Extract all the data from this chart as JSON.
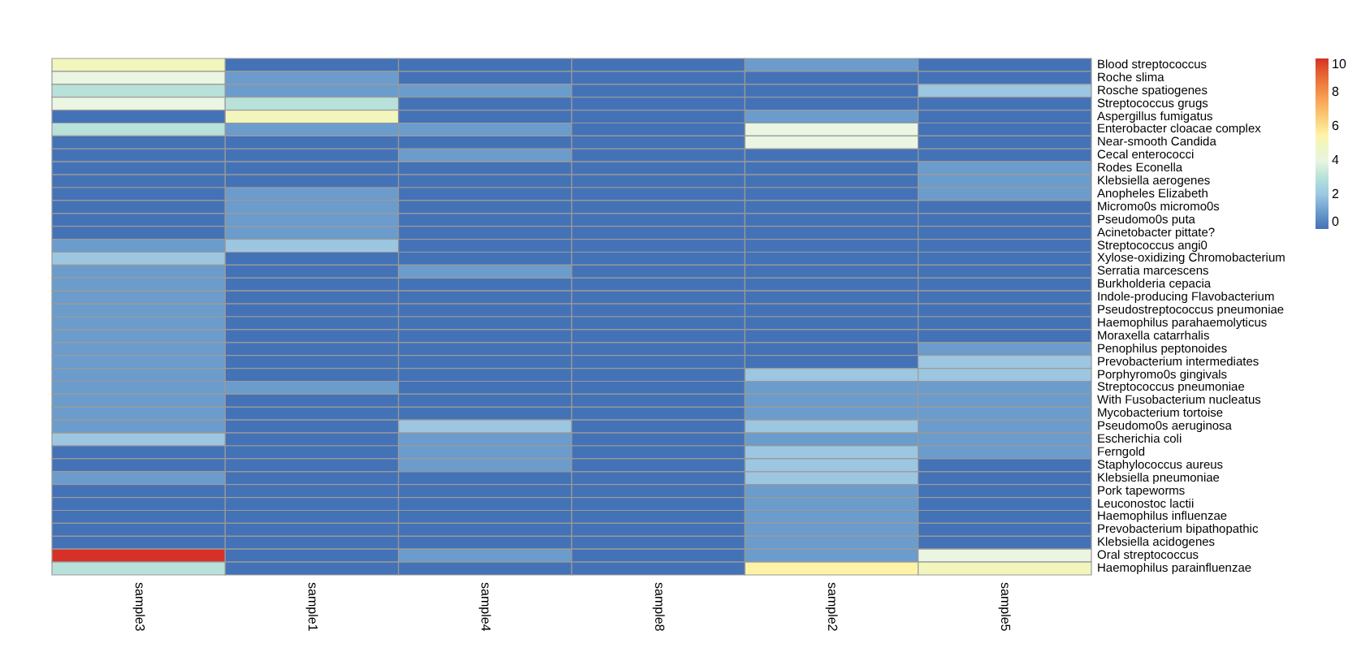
{
  "chart_data": {
    "type": "heatmap",
    "categories": [
      "sample3",
      "sample1",
      "sample4",
      "sample8",
      "sample2",
      "sample5"
    ],
    "y_categories": [
      "Blood streptococcus",
      "Roche slima",
      "Rosche spatiogenes",
      "Streptococcus grugs",
      "Aspergillus fumigatus",
      "Enterobacter cloacae complex",
      "Near-smooth Candida",
      "Cecal enterococci",
      "Rodes Econella",
      "Klebsiella aerogenes",
      "Anopheles Elizabeth",
      "Micromo0s micromo0s",
      "Pseudomo0s puta",
      "Acinetobacter pittate?",
      "Streptococcus angi0",
      "Xylose-oxidizing Chromobacterium",
      "Serratia marcescens",
      "Burkholderia cepacia",
      "Indole-producing Flavobacterium",
      "Pseudostreptococcus pneumoniae",
      "Haemophilus parahaemolyticus",
      "Moraxella catarrhalis",
      "Penophilus peptonoides",
      "Prevobacterium intermediates",
      "Porphyromo0s gingivals",
      "Streptococcus pneumoniae",
      "With Fusobacterium nucleatus",
      "Mycobacterium tortoise",
      "Pseudomo0s aeruginosa",
      "Escherichia coli",
      "Ferngold",
      "Staphylococcus aureus",
      "Klebsiella pneumoniae",
      "Pork tapeworms",
      "Leuconostoc lactii",
      "Haemophilus influenzae",
      "Prevobacterium bipathopathic",
      "Klebsiella acidogenes",
      "Oral streptococcus",
      "Haemophilus parainfluenzae"
    ],
    "cells": [
      [
        5,
        0,
        0,
        0,
        1,
        0
      ],
      [
        4,
        1,
        0,
        0,
        0,
        0
      ],
      [
        3,
        1,
        1,
        0,
        0,
        2
      ],
      [
        4,
        3,
        0,
        0,
        0,
        0
      ],
      [
        0,
        5,
        0,
        0,
        1,
        0
      ],
      [
        3,
        1,
        1,
        0,
        4,
        0
      ],
      [
        0,
        0,
        0,
        0,
        4,
        0
      ],
      [
        0,
        0,
        1,
        0,
        0,
        0
      ],
      [
        0,
        0,
        0,
        0,
        0,
        1
      ],
      [
        0,
        0,
        0,
        0,
        0,
        1
      ],
      [
        0,
        1,
        0,
        0,
        0,
        1
      ],
      [
        0,
        1,
        0,
        0,
        0,
        0
      ],
      [
        0,
        1,
        0,
        0,
        0,
        0
      ],
      [
        0,
        1,
        0,
        0,
        0,
        0
      ],
      [
        1,
        2,
        0,
        0,
        0,
        0
      ],
      [
        2,
        0,
        0,
        0,
        0,
        0
      ],
      [
        1,
        0,
        1,
        0,
        0,
        0
      ],
      [
        1,
        0,
        0,
        0,
        0,
        0
      ],
      [
        1,
        0,
        0,
        0,
        0,
        0
      ],
      [
        1,
        0,
        0,
        0,
        0,
        0
      ],
      [
        1,
        0,
        0,
        0,
        0,
        0
      ],
      [
        1,
        0,
        0,
        0,
        0,
        0
      ],
      [
        1,
        0,
        0,
        0,
        0,
        1
      ],
      [
        1,
        0,
        0,
        0,
        0,
        2
      ],
      [
        1,
        0,
        0,
        0,
        2,
        2
      ],
      [
        1,
        1,
        0,
        0,
        1,
        1
      ],
      [
        1,
        0,
        0,
        0,
        1,
        1
      ],
      [
        1,
        0,
        0,
        0,
        1,
        1
      ],
      [
        1,
        0,
        2,
        0,
        2,
        1
      ],
      [
        2,
        0,
        1,
        0,
        1,
        1
      ],
      [
        0,
        0,
        1,
        0,
        2,
        1
      ],
      [
        0,
        0,
        1,
        0,
        2,
        0
      ],
      [
        1,
        0,
        0,
        0,
        2,
        0
      ],
      [
        0,
        0,
        0,
        0,
        1,
        0
      ],
      [
        0,
        0,
        0,
        0,
        1,
        0
      ],
      [
        0,
        0,
        0,
        0,
        1,
        0
      ],
      [
        0,
        0,
        0,
        0,
        1,
        0
      ],
      [
        0,
        0,
        0,
        0,
        1,
        0
      ],
      [
        10,
        0,
        1,
        0,
        1,
        4
      ],
      [
        3,
        0,
        0,
        0,
        5.5,
        5
      ]
    ],
    "clim": [
      0,
      10
    ],
    "cticks": [
      0,
      2,
      4,
      6,
      8,
      10
    ]
  }
}
